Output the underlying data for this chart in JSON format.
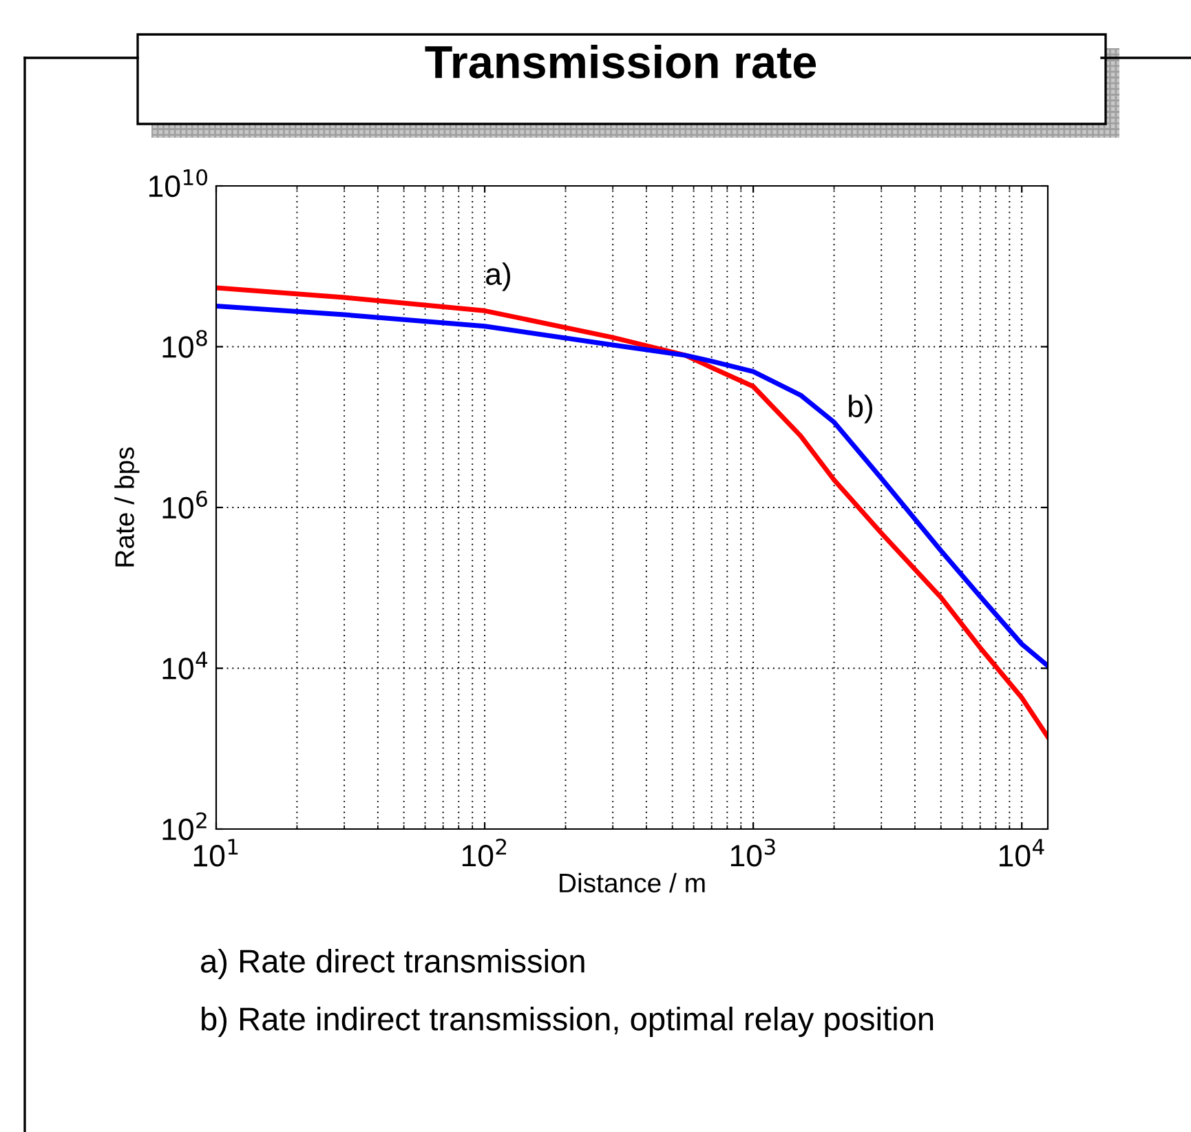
{
  "chart_data": {
    "type": "line",
    "title": "Transmission rate",
    "xlabel": "Distance / m",
    "ylabel": "Rate / bps",
    "log": "xy",
    "grid": true,
    "marker": "none",
    "line_style": "solid",
    "xlim": [
      10,
      12500
    ],
    "ylim": [
      100,
      10000000000
    ],
    "xticks": [
      {
        "value": 10,
        "label": "10$^{1}$"
      },
      {
        "value": 100,
        "label": "10$^{2}$"
      },
      {
        "value": 1000,
        "label": "10$^{3}$"
      },
      {
        "value": 10000,
        "label": "10$^{4}$"
      }
    ],
    "yticks": [
      {
        "value": 100,
        "label": "10$^{2}$"
      },
      {
        "value": 10000,
        "label": "10$^{4}$"
      },
      {
        "value": 1000000,
        "label": "10$^{6}$"
      },
      {
        "value": 100000000,
        "label": "10$^{8}$"
      },
      {
        "value": 10000000000,
        "label": "10$^{10}$"
      }
    ],
    "x": [
      10,
      30,
      100,
      300,
      560,
      700,
      1000,
      1500,
      2000,
      3000,
      5000,
      7000,
      10000,
      12500
    ],
    "series": [
      {
        "color": "#ff0000",
        "values": [
          540000000,
          410000000,
          280000000,
          130000000,
          78000000,
          55000000,
          32000000,
          7800000,
          2200000,
          480000,
          76000,
          18000,
          4300,
          1400
        ]
      },
      {
        "color": "#0000ff",
        "values": [
          320000000,
          250000000,
          180000000,
          105000000,
          78000000,
          66000000,
          49000000,
          25000000,
          11500000,
          2300000,
          290000,
          78000,
          20000,
          10700
        ]
      }
    ],
    "annotations": [
      "a)",
      "b)",
      "a) Rate direct transmission",
      "b) Rate indirect transmission, optimal relay position"
    ]
  }
}
